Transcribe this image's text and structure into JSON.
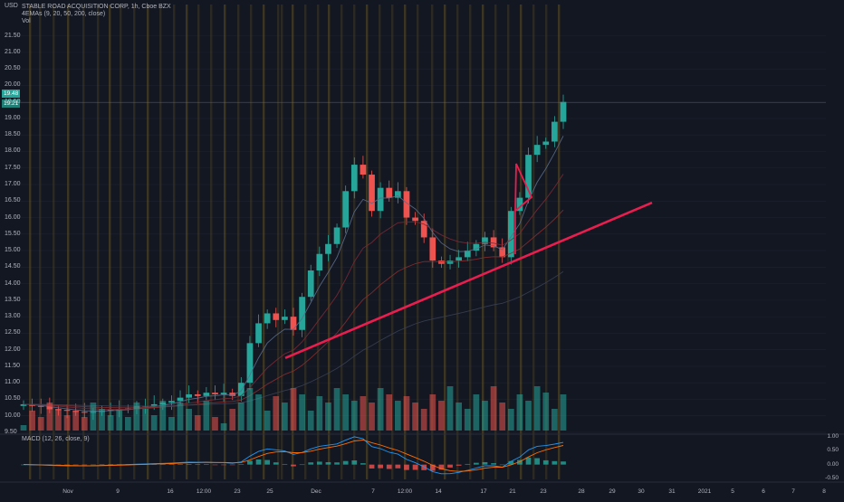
{
  "header": {
    "currency": "USD",
    "symbol_line": "STABLE ROAD ACQUISITION CORP, 1h, Cboe BZX",
    "ema_line": "4EMAs (9, 20, 50, 200, close)",
    "vol_label": "Vol",
    "macd_label": "MACD (12, 26, close, 9)"
  },
  "price_tags": {
    "last": "19.48",
    "second": "19.21"
  },
  "colors": {
    "background": "#131722",
    "up": "#26a69a",
    "down": "#ef5350",
    "trendline": "#e91e4e",
    "macd_line": "#2196f3",
    "signal_line": "#ff6d00",
    "session_bar": "#8a6d1d"
  },
  "chart_data": [
    {
      "type": "candlestick",
      "title": "STABLE ROAD ACQUISITION CORP, 1h, Cboe BZX",
      "ylabel": "USD",
      "ylim": [
        9.5,
        21.9
      ],
      "y_ticks": [
        "21.50",
        "21.00",
        "20.50",
        "20.00",
        "19.50",
        "19.00",
        "18.50",
        "18.00",
        "17.50",
        "17.00",
        "16.50",
        "16.00",
        "15.50",
        "15.00",
        "14.50",
        "14.00",
        "13.50",
        "13.00",
        "12.50",
        "12.00",
        "11.50",
        "11.00",
        "10.50",
        "10.00",
        "9.50"
      ],
      "x_ticks": [
        "Nov",
        "9",
        "16",
        "12:00",
        "23",
        "25",
        "Dec",
        "7",
        "12:00",
        "14",
        "17",
        "21",
        "23",
        "28",
        "29",
        "30",
        "31",
        "2021",
        "5",
        "6",
        "7",
        "8"
      ],
      "series_close": [
        10.35,
        10.3,
        10.28,
        10.2,
        10.18,
        10.15,
        10.12,
        10.1,
        10.12,
        10.15,
        10.18,
        10.2,
        10.22,
        10.28,
        10.3,
        10.35,
        10.4,
        10.45,
        10.55,
        10.65,
        10.6,
        10.7,
        10.65,
        10.7,
        10.6,
        11.0,
        12.2,
        12.8,
        13.1,
        12.9,
        13.0,
        12.6,
        13.6,
        14.4,
        14.9,
        15.2,
        15.7,
        16.8,
        17.6,
        17.3,
        16.2,
        16.9,
        16.6,
        16.8,
        16.0,
        15.9,
        15.4,
        14.7,
        14.6,
        14.7,
        14.8,
        15.0,
        15.2,
        15.4,
        15.1,
        14.8,
        16.2,
        16.6,
        17.9,
        18.2,
        18.3,
        18.9,
        19.5
      ],
      "trendline": {
        "start": {
          "x": "25",
          "y": 11.75
        },
        "end": {
          "x": "28",
          "y": 16.45
        }
      },
      "legend": [
        "4EMAs (9, 20, 50, 200, close)"
      ]
    },
    {
      "type": "bar",
      "title": "Vol"
    },
    {
      "type": "line",
      "title": "MACD (12, 26, close, 9)",
      "y_ticks": [
        "1.00",
        "0.50",
        "0.00",
        "-0.50"
      ],
      "ylim": [
        -0.6,
        1.1
      ]
    }
  ]
}
